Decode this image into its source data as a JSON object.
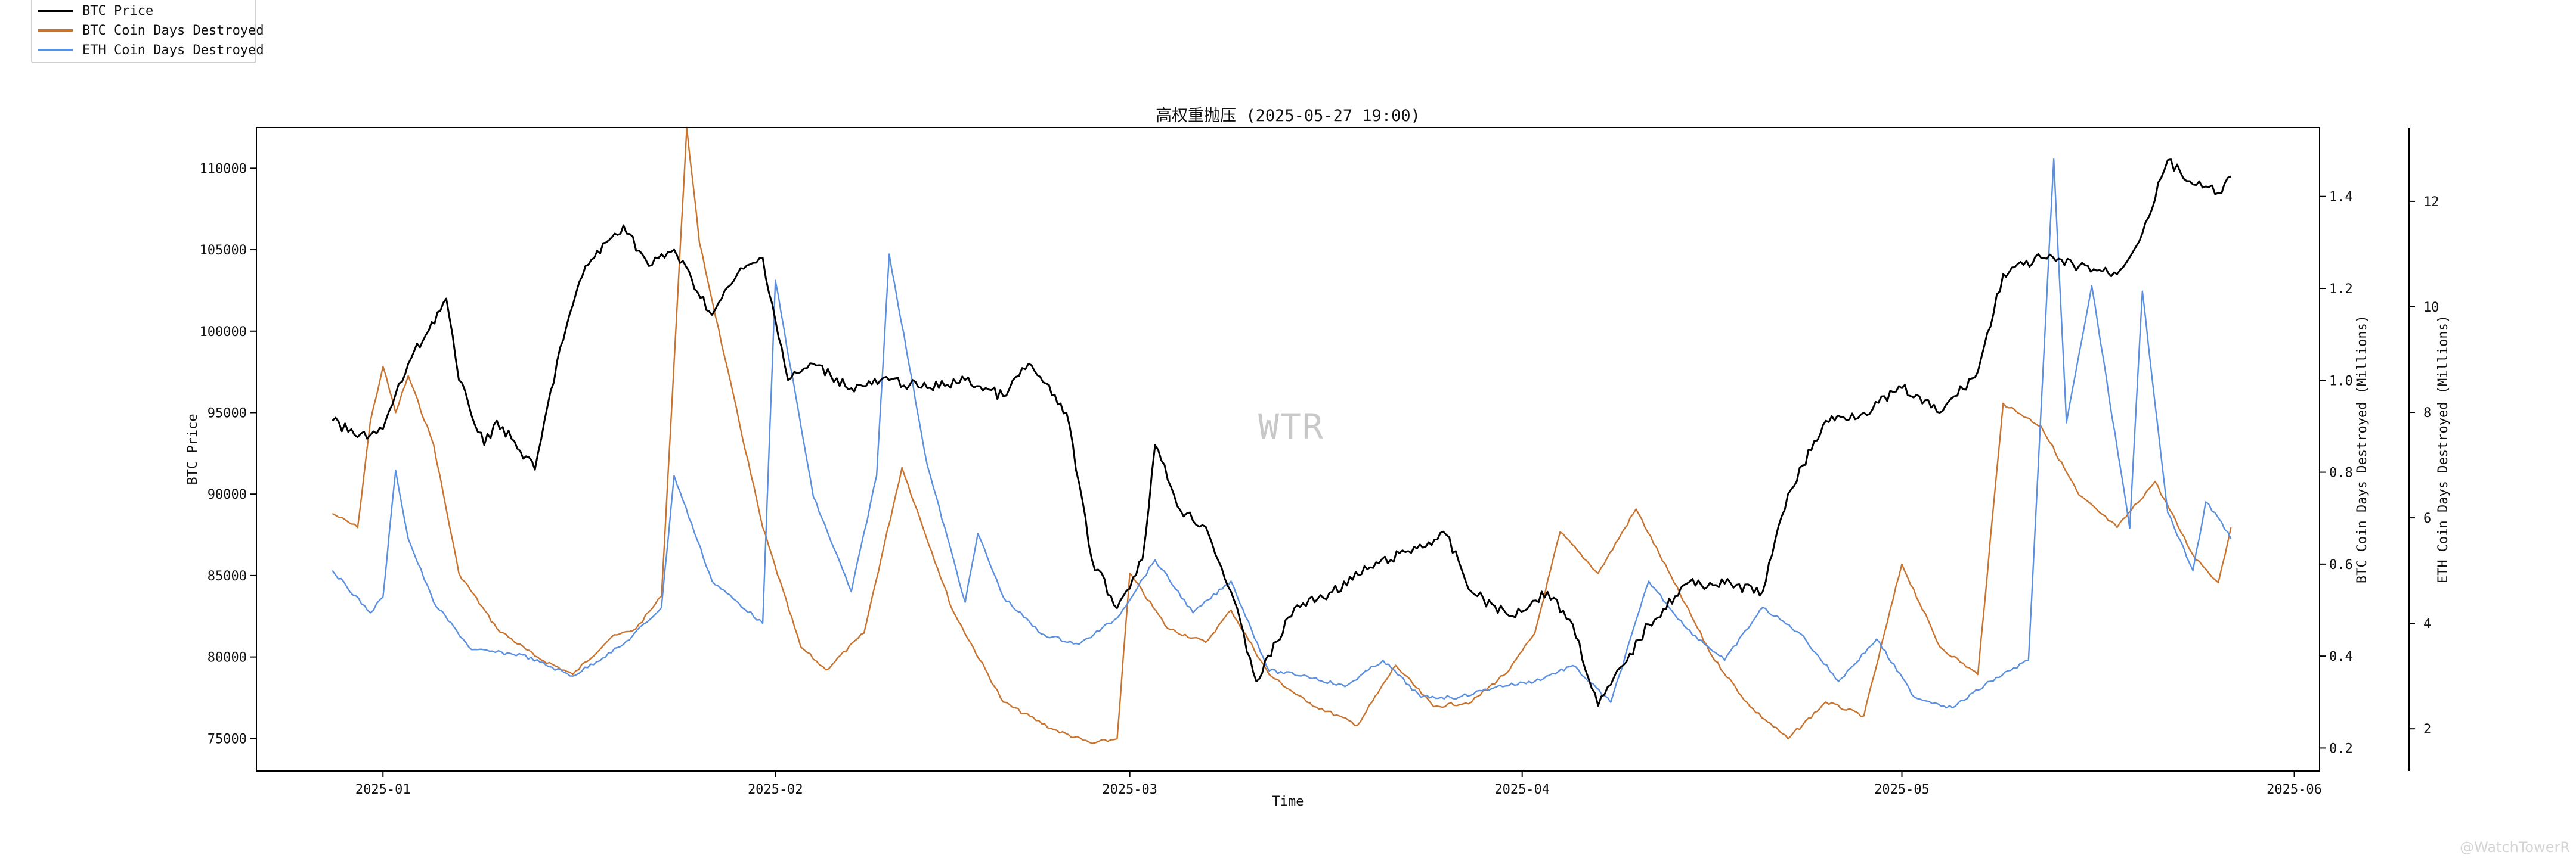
{
  "title": "高权重抛压 (2025-05-27 19:00)",
  "watermark": "WTR",
  "credit": "@WatchTowerR",
  "legend": [
    {
      "label": "BTC Price",
      "color": "#000000"
    },
    {
      "label": "BTC Coin Days Destroyed",
      "color": "#c8742f"
    },
    {
      "label": "ETH Coin Days Destroyed",
      "color": "#5b8fe0"
    }
  ],
  "chart_data": {
    "type": "line",
    "xlabel": "Time",
    "x_ticks": [
      "2025-01",
      "2025-02",
      "2025-03",
      "2025-04",
      "2025-05",
      "2025-06"
    ],
    "x_range": [
      "2024-12-22",
      "2025-06-03"
    ],
    "left_axis": {
      "label": "BTC Price",
      "lim": [
        73000,
        112500
      ],
      "ticks": [
        75000,
        80000,
        85000,
        90000,
        95000,
        100000,
        105000,
        110000
      ]
    },
    "right_axis_1": {
      "label": "BTC Coin Days Destroyed (Millions)",
      "lim": [
        0.15,
        1.55
      ],
      "ticks": [
        "0.2",
        "0.4",
        "0.6",
        "0.8",
        "1.0",
        "1.2",
        "1.4"
      ]
    },
    "right_axis_2": {
      "label": "ETH Coin Days Destroyed (Millions)",
      "lim": [
        1.2,
        13.4
      ],
      "ticks": [
        "2",
        "4",
        "6",
        "8",
        "10",
        "12"
      ]
    },
    "series": [
      {
        "name": "BTC Price",
        "axis": "left",
        "color": "#000000",
        "x": [
          "2024-12-28",
          "2024-12-30",
          "2025-01-01",
          "2025-01-03",
          "2025-01-06",
          "2025-01-07",
          "2025-01-09",
          "2025-01-10",
          "2025-01-13",
          "2025-01-15",
          "2025-01-17",
          "2025-01-20",
          "2025-01-22",
          "2025-01-24",
          "2025-01-27",
          "2025-01-29",
          "2025-01-31",
          "2025-02-02",
          "2025-02-04",
          "2025-02-07",
          "2025-02-10",
          "2025-02-13",
          "2025-02-16",
          "2025-02-19",
          "2025-02-21",
          "2025-02-24",
          "2025-02-26",
          "2025-02-28",
          "2025-03-02",
          "2025-03-03",
          "2025-03-05",
          "2025-03-07",
          "2025-03-09",
          "2025-03-11",
          "2025-03-14",
          "2025-03-17",
          "2025-03-20",
          "2025-03-23",
          "2025-03-26",
          "2025-03-28",
          "2025-03-31",
          "2025-04-03",
          "2025-04-05",
          "2025-04-07",
          "2025-04-09",
          "2025-04-11",
          "2025-04-14",
          "2025-04-17",
          "2025-04-20",
          "2025-04-22",
          "2025-04-25",
          "2025-04-28",
          "2025-05-01",
          "2025-05-04",
          "2025-05-07",
          "2025-05-09",
          "2025-05-12",
          "2025-05-15",
          "2025-05-18",
          "2025-05-20",
          "2025-05-22",
          "2025-05-24",
          "2025-05-26",
          "2025-05-27"
        ],
        "values": [
          94500,
          93500,
          94000,
          98000,
          102000,
          97000,
          93000,
          94500,
          91500,
          99000,
          104000,
          106500,
          104000,
          105000,
          101000,
          103500,
          104500,
          97000,
          98000,
          96500,
          97000,
          96500,
          97000,
          96000,
          98000,
          95000,
          86000,
          83000,
          86000,
          93000,
          89000,
          88000,
          84000,
          78500,
          83000,
          84000,
          85500,
          86500,
          87500,
          84000,
          82500,
          84000,
          82000,
          77000,
          79500,
          82000,
          84500,
          84500,
          84000,
          90000,
          94500,
          95000,
          96500,
          95000,
          97500,
          103500,
          104500,
          104000,
          103500,
          106000,
          110500,
          109000,
          108500,
          109500
        ]
      },
      {
        "name": "BTC Coin Days Destroyed",
        "axis": "right1",
        "color": "#c8742f",
        "x": [
          "2024-12-28",
          "2024-12-30",
          "2024-12-31",
          "2025-01-01",
          "2025-01-02",
          "2025-01-03",
          "2025-01-05",
          "2025-01-07",
          "2025-01-10",
          "2025-01-13",
          "2025-01-16",
          "2025-01-19",
          "2025-01-21",
          "2025-01-23",
          "2025-01-25",
          "2025-01-26",
          "2025-01-28",
          "2025-01-31",
          "2025-02-03",
          "2025-02-05",
          "2025-02-08",
          "2025-02-11",
          "2025-02-15",
          "2025-02-19",
          "2025-02-23",
          "2025-02-26",
          "2025-02-28",
          "2025-03-01",
          "2025-03-04",
          "2025-03-07",
          "2025-03-09",
          "2025-03-12",
          "2025-03-15",
          "2025-03-19",
          "2025-03-22",
          "2025-03-25",
          "2025-03-28",
          "2025-03-31",
          "2025-04-02",
          "2025-04-04",
          "2025-04-07",
          "2025-04-10",
          "2025-04-13",
          "2025-04-16",
          "2025-04-19",
          "2025-04-22",
          "2025-04-25",
          "2025-04-28",
          "2025-05-01",
          "2025-05-04",
          "2025-05-07",
          "2025-05-09",
          "2025-05-12",
          "2025-05-15",
          "2025-05-18",
          "2025-05-21",
          "2025-05-24",
          "2025-05-26",
          "2025-05-27"
        ],
        "values": [
          0.71,
          0.68,
          0.91,
          1.03,
          0.93,
          1.01,
          0.86,
          0.58,
          0.46,
          0.4,
          0.36,
          0.44,
          0.46,
          0.53,
          1.55,
          1.3,
          1.05,
          0.68,
          0.42,
          0.37,
          0.45,
          0.81,
          0.5,
          0.3,
          0.24,
          0.21,
          0.22,
          0.58,
          0.46,
          0.43,
          0.5,
          0.36,
          0.3,
          0.25,
          0.38,
          0.29,
          0.3,
          0.37,
          0.45,
          0.67,
          0.58,
          0.72,
          0.56,
          0.4,
          0.29,
          0.22,
          0.3,
          0.27,
          0.6,
          0.42,
          0.36,
          0.95,
          0.9,
          0.75,
          0.68,
          0.78,
          0.62,
          0.56,
          0.68
        ]
      },
      {
        "name": "ETH Coin Days Destroyed",
        "axis": "right2",
        "color": "#5b8fe0",
        "x": [
          "2024-12-28",
          "2024-12-31",
          "2025-01-01",
          "2025-01-02",
          "2025-01-03",
          "2025-01-05",
          "2025-01-08",
          "2025-01-12",
          "2025-01-16",
          "2025-01-20",
          "2025-01-23",
          "2025-01-24",
          "2025-01-27",
          "2025-01-31",
          "2025-02-01",
          "2025-02-04",
          "2025-02-07",
          "2025-02-09",
          "2025-02-10",
          "2025-02-13",
          "2025-02-16",
          "2025-02-17",
          "2025-02-19",
          "2025-02-22",
          "2025-02-25",
          "2025-02-28",
          "2025-03-03",
          "2025-03-06",
          "2025-03-09",
          "2025-03-12",
          "2025-03-15",
          "2025-03-18",
          "2025-03-21",
          "2025-03-24",
          "2025-03-27",
          "2025-03-30",
          "2025-04-02",
          "2025-04-05",
          "2025-04-08",
          "2025-04-11",
          "2025-04-14",
          "2025-04-17",
          "2025-04-20",
          "2025-04-23",
          "2025-04-26",
          "2025-04-29",
          "2025-05-02",
          "2025-05-05",
          "2025-05-08",
          "2025-05-11",
          "2025-05-13",
          "2025-05-14",
          "2025-05-16",
          "2025-05-19",
          "2025-05-20",
          "2025-05-22",
          "2025-05-24",
          "2025-05-25",
          "2025-05-26",
          "2025-05-27"
        ],
        "values": [
          5.0,
          4.2,
          4.5,
          6.9,
          5.6,
          4.4,
          3.5,
          3.4,
          3.0,
          3.6,
          4.3,
          6.8,
          4.8,
          4.0,
          10.5,
          6.4,
          4.6,
          6.8,
          11.0,
          7.0,
          4.4,
          5.7,
          4.5,
          3.8,
          3.6,
          4.1,
          5.2,
          4.2,
          4.8,
          3.1,
          3.0,
          2.8,
          3.3,
          2.6,
          2.6,
          2.8,
          2.9,
          3.2,
          2.5,
          4.8,
          3.9,
          3.3,
          4.3,
          3.8,
          2.9,
          3.7,
          2.6,
          2.4,
          2.9,
          3.3,
          12.8,
          7.8,
          10.4,
          5.8,
          10.3,
          6.1,
          5.0,
          6.3,
          6.0,
          5.6
        ]
      }
    ]
  }
}
